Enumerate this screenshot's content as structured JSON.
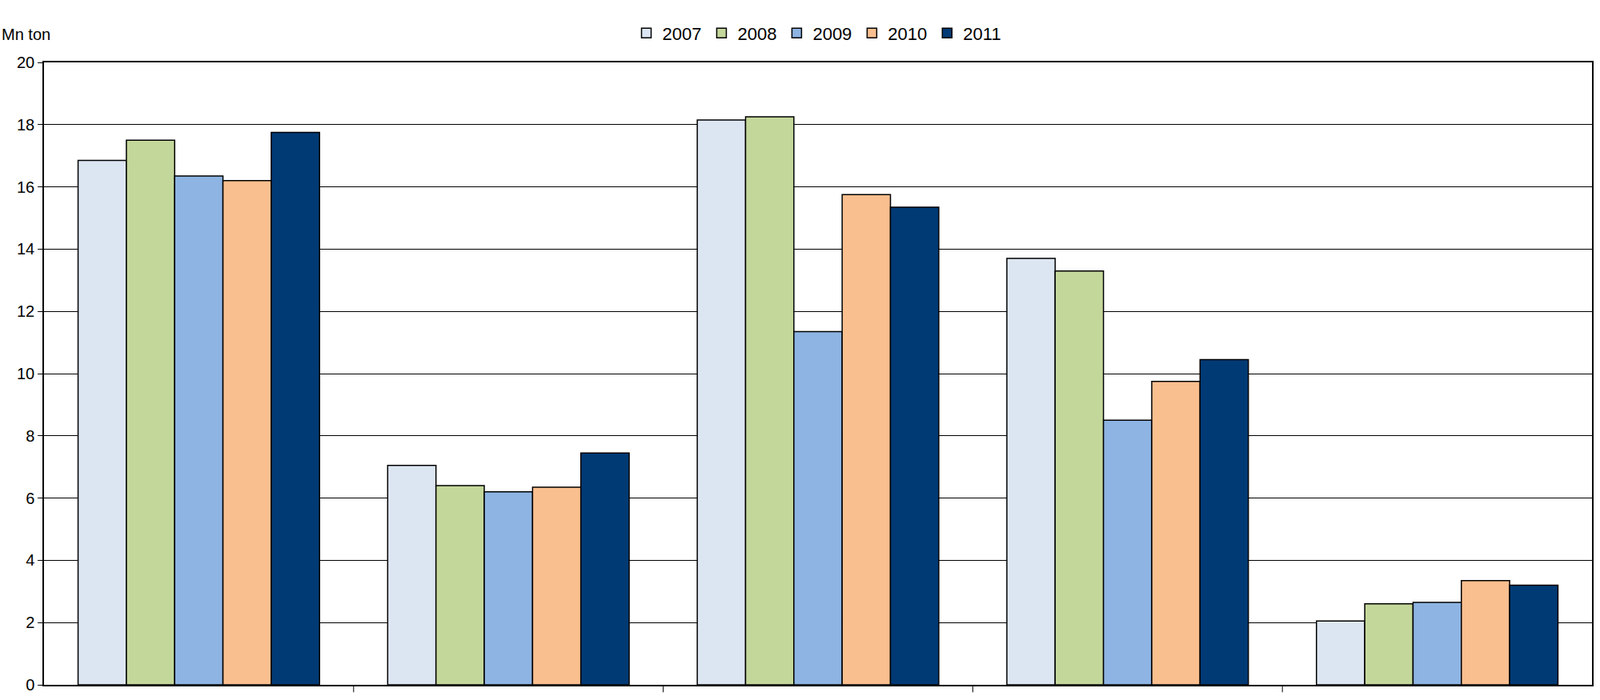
{
  "chart_data": {
    "type": "bar",
    "y_label": "Mn ton",
    "categories": [
      null,
      null,
      null,
      null,
      null
    ],
    "series": [
      {
        "name": "2007",
        "color": "#dce6f2",
        "values": [
          16.85,
          7.05,
          18.15,
          13.7,
          2.05
        ]
      },
      {
        "name": "2008",
        "color": "#c4d79b",
        "values": [
          17.5,
          6.4,
          18.25,
          13.3,
          2.6
        ]
      },
      {
        "name": "2009",
        "color": "#8db4e2",
        "values": [
          16.35,
          6.2,
          11.35,
          8.5,
          2.65
        ]
      },
      {
        "name": "2010",
        "color": "#fabf8f",
        "values": [
          16.2,
          6.35,
          15.75,
          9.75,
          3.35
        ]
      },
      {
        "name": "2011",
        "color": "#003a75",
        "values": [
          17.75,
          7.45,
          15.35,
          10.45,
          3.2
        ]
      }
    ],
    "ylim": [
      0,
      20
    ],
    "yticks": [
      0,
      2,
      4,
      6,
      8,
      10,
      12,
      14,
      16,
      18,
      20
    ],
    "grid": true,
    "legend": "top",
    "tick_labels": "y"
  }
}
